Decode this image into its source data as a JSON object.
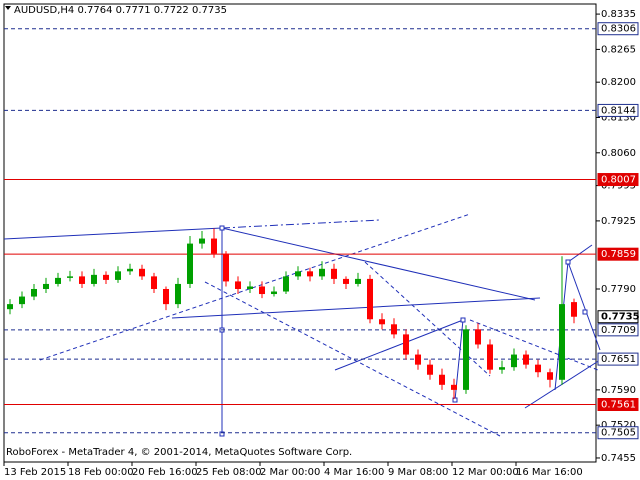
{
  "chart_data": {
    "type": "candlestick",
    "title": "AUDUSD,H4  0.7764 0.7771 0.7722 0.7735",
    "watermark": "RoboForex - MetaTrader 4, © 2001-2014, MetaQuotes Software Corp.",
    "x": [
      1.5,
      4.5,
      7.5,
      10.5,
      13.5,
      16.5,
      19.5,
      22.5,
      25.5,
      28.5,
      31.5,
      34.5,
      37.5,
      40.5,
      43.5,
      46.5,
      49.5,
      52.5,
      55.5,
      58.5,
      61.5,
      64.5,
      67.5,
      70.5,
      73.5,
      76.5,
      79.5,
      82.5,
      85.5,
      88.5,
      91.5,
      94.5,
      97.5,
      100.5,
      103.5,
      106.5,
      109.5,
      112.5,
      115.5,
      118.5,
      121.5,
      124.5,
      127.5,
      130.5,
      133.5,
      136.5,
      139.5,
      142.5
    ],
    "open": [
      0.775,
      0.776,
      0.7775,
      0.779,
      0.78,
      0.7812,
      0.7815,
      0.78,
      0.7818,
      0.7808,
      0.7825,
      0.783,
      0.7815,
      0.779,
      0.776,
      0.78,
      0.788,
      0.789,
      0.786,
      0.7805,
      0.779,
      0.7795,
      0.778,
      0.7785,
      0.7815,
      0.7825,
      0.7815,
      0.783,
      0.781,
      0.78,
      0.781,
      0.773,
      0.772,
      0.77,
      0.766,
      0.764,
      0.762,
      0.76,
      0.759,
      0.771,
      0.768,
      0.763,
      0.7635,
      0.766,
      0.764,
      0.7625,
      0.761,
      0.7764
    ],
    "high": [
      0.777,
      0.7785,
      0.78,
      0.7812,
      0.7822,
      0.7826,
      0.7825,
      0.783,
      0.7825,
      0.7835,
      0.784,
      0.7838,
      0.7822,
      0.7795,
      0.7812,
      0.7895,
      0.7905,
      0.791,
      0.7865,
      0.7815,
      0.7805,
      0.7805,
      0.7795,
      0.7825,
      0.7835,
      0.7832,
      0.7845,
      0.784,
      0.7815,
      0.7822,
      0.7818,
      0.7742,
      0.7732,
      0.771,
      0.767,
      0.765,
      0.7632,
      0.7612,
      0.7718,
      0.7722,
      0.769,
      0.7648,
      0.7672,
      0.7668,
      0.765,
      0.7632,
      0.7855,
      0.7771
    ],
    "low": [
      0.774,
      0.7752,
      0.7768,
      0.7782,
      0.7795,
      0.7805,
      0.7792,
      0.7795,
      0.78,
      0.7802,
      0.7818,
      0.7808,
      0.7782,
      0.7748,
      0.7752,
      0.7792,
      0.787,
      0.7852,
      0.7795,
      0.778,
      0.7782,
      0.7772,
      0.7775,
      0.778,
      0.7808,
      0.7805,
      0.7808,
      0.78,
      0.779,
      0.7795,
      0.7722,
      0.771,
      0.7692,
      0.765,
      0.763,
      0.761,
      0.759,
      0.7572,
      0.7582,
      0.7672,
      0.7622,
      0.7622,
      0.7628,
      0.7632,
      0.7615,
      0.7595,
      0.76,
      0.7722
    ],
    "close": [
      0.776,
      0.7775,
      0.779,
      0.78,
      0.7812,
      0.7815,
      0.78,
      0.7818,
      0.7808,
      0.7825,
      0.783,
      0.7815,
      0.779,
      0.776,
      0.78,
      0.788,
      0.789,
      0.786,
      0.7805,
      0.779,
      0.7795,
      0.778,
      0.7785,
      0.7815,
      0.7825,
      0.7815,
      0.783,
      0.781,
      0.78,
      0.781,
      0.773,
      0.772,
      0.77,
      0.766,
      0.764,
      0.762,
      0.76,
      0.759,
      0.771,
      0.768,
      0.763,
      0.7635,
      0.766,
      0.764,
      0.7625,
      0.761,
      0.776,
      0.7735
    ],
    "up_color": "#00a000",
    "down_color": "#ff0000",
    "xlim": [
      0,
      148
    ],
    "xticks": [
      {
        "value": 0,
        "label": "13 Feb 2015"
      },
      {
        "value": 16,
        "label": "18 Feb 00:00"
      },
      {
        "value": 32,
        "label": "20 Feb 16:00"
      },
      {
        "value": 48,
        "label": "25 Feb 08:00"
      },
      {
        "value": 64,
        "label": "2 Mar 00:00"
      },
      {
        "value": 80,
        "label": "4 Mar 16:00"
      },
      {
        "value": 96,
        "label": "9 Mar 08:00"
      },
      {
        "value": 112,
        "label": "12 Mar 00:00"
      },
      {
        "value": 128,
        "label": "16 Mar 16:00"
      }
    ],
    "ylim": [
      0.7447,
      0.8355
    ],
    "yticks": [
      0.8335,
      0.8265,
      {
        "value": 0.82,
        "label": "0.8200"
      },
      {
        "value": 0.813,
        "label": "0.8130"
      },
      {
        "value": 0.806,
        "label": "0.8060"
      },
      0.7995,
      0.7925,
      {
        "value": 0.779,
        "label": "0.7790"
      },
      {
        "value": 0.759,
        "label": "0.7590"
      },
      {
        "value": 0.752,
        "label": "0.7520"
      },
      0.7455
    ],
    "levels": [
      {
        "value": 0.8306,
        "label": "0.8306",
        "color": "#1f2f8f",
        "dashed": true
      },
      {
        "value": 0.8144,
        "label": "0.8144",
        "color": "#1f2f8f",
        "dashed": true
      },
      {
        "value": 0.8007,
        "label": "0.8007",
        "color": "#e00000",
        "dashed": false
      },
      {
        "value": 0.7859,
        "label": "0.7859",
        "color": "#e00000",
        "dashed": false
      },
      {
        "value": 0.7709,
        "label": "0.7709",
        "color": "#1f2f8f",
        "dashed": true
      },
      {
        "value": 0.7651,
        "label": "0.7651",
        "color": "#1f2f8f",
        "dashed": true
      },
      {
        "value": 0.7561,
        "label": "0.7561",
        "color": "#e00000",
        "dashed": false
      },
      {
        "value": 0.7505,
        "label": "0.7505",
        "color": "#1f2f8f",
        "dashed": true
      }
    ],
    "price_label": {
      "value": 0.7735,
      "label": "0.7735"
    }
  }
}
